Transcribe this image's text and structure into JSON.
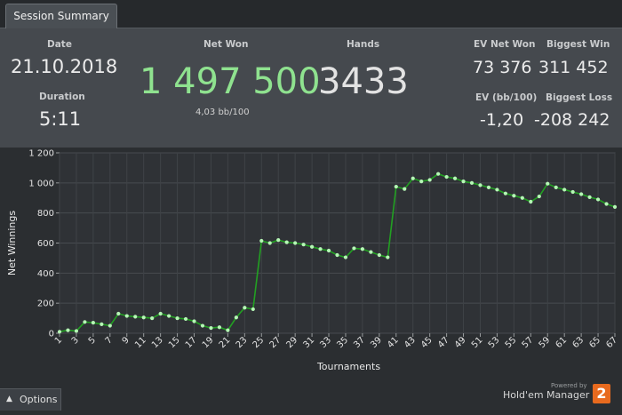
{
  "tab": {
    "label": "Session Summary"
  },
  "summary": {
    "date_label": "Date",
    "date_value": "21.10.2018",
    "duration_label": "Duration",
    "duration_value": "5:11",
    "net_won_label": "Net Won",
    "net_won_value": "1 497 500",
    "net_won_bb": "4,03 bb/100",
    "hands_label": "Hands",
    "hands_value": "3433",
    "ev_net_won_label": "EV Net Won",
    "ev_net_won_value": "73 376",
    "biggest_win_label": "Biggest Win",
    "biggest_win_value": "311 452",
    "ev_bb_label": "EV (bb/100)",
    "ev_bb_value": "-1,20",
    "biggest_loss_label": "Biggest Loss",
    "biggest_loss_value": "-208 242",
    "net_won_color": "#8fe28f",
    "hands_color": "#e3e3e3"
  },
  "footer": {
    "options_label": "Options",
    "powered_by": "Powered by",
    "brand": "Hold'em Manager",
    "logo_text": "2"
  },
  "chart_data": {
    "type": "line",
    "xlabel": "Tournaments",
    "ylabel": "Net Winnings",
    "ylim": [
      0,
      1200
    ],
    "yticks": [
      0,
      200,
      400,
      600,
      800,
      1000,
      1200
    ],
    "ytick_labels": [
      "0",
      "200",
      "400",
      "600",
      "800",
      "1 000",
      "1 200"
    ],
    "xlim": [
      1,
      67
    ],
    "xticks": [
      1,
      3,
      5,
      7,
      9,
      11,
      13,
      15,
      17,
      19,
      21,
      23,
      25,
      27,
      29,
      31,
      33,
      35,
      37,
      39,
      41,
      43,
      45,
      47,
      49,
      51,
      53,
      55,
      57,
      59,
      61,
      63,
      65,
      67
    ],
    "grid": true,
    "line_color": "#22a022",
    "marker_color": "#b6f7b6",
    "series": [
      {
        "x": [
          1,
          2,
          3,
          4,
          5,
          6,
          7,
          8,
          9,
          10,
          11,
          12,
          13,
          14,
          15,
          16,
          17,
          18,
          19,
          20,
          21,
          22,
          23,
          24,
          25,
          26,
          27,
          28,
          29,
          30,
          31,
          32,
          33,
          34,
          35,
          36,
          37,
          38,
          39,
          40,
          41,
          42,
          43,
          44,
          45,
          46,
          47,
          48,
          49,
          50,
          51,
          52,
          53,
          54,
          55,
          56,
          57,
          58,
          59,
          60,
          61,
          62,
          63,
          64,
          65,
          66,
          67
        ],
        "values": [
          10,
          20,
          15,
          75,
          70,
          60,
          50,
          130,
          115,
          110,
          105,
          100,
          130,
          115,
          100,
          95,
          80,
          50,
          35,
          40,
          20,
          105,
          170,
          160,
          615,
          600,
          620,
          605,
          600,
          590,
          575,
          560,
          550,
          520,
          505,
          565,
          560,
          540,
          520,
          505,
          975,
          960,
          1030,
          1010,
          1020,
          1060,
          1040,
          1030,
          1010,
          1000,
          985,
          970,
          955,
          930,
          915,
          900,
          875,
          910,
          995,
          970,
          955,
          940,
          925,
          905,
          890,
          860,
          840
        ]
      }
    ]
  }
}
